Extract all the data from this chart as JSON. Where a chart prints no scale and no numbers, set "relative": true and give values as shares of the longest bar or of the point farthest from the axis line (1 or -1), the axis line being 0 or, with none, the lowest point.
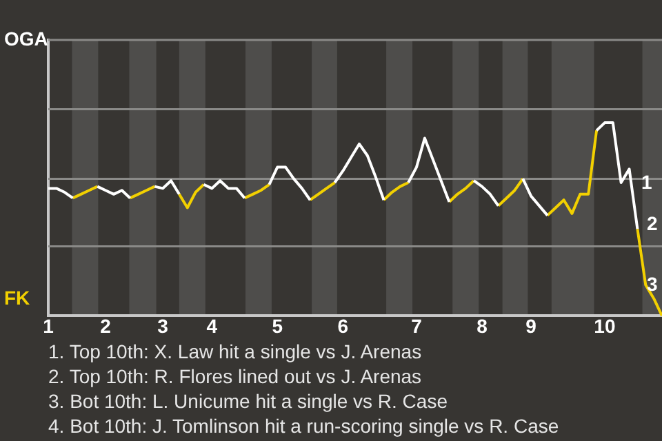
{
  "chart_data": {
    "type": "line",
    "relative": true,
    "marker": "none",
    "line_style": "solid",
    "categories": [
      "1",
      null,
      null,
      null,
      null,
      null,
      null,
      "2",
      null,
      null,
      null,
      null,
      null,
      null,
      "3",
      null,
      null,
      null,
      null,
      null,
      "4",
      null,
      null,
      null,
      null,
      null,
      null,
      null,
      "5",
      null,
      null,
      null,
      null,
      null,
      null,
      null,
      "6",
      null,
      null,
      null,
      null,
      null,
      null,
      null,
      null,
      "7",
      null,
      null,
      null,
      null,
      null,
      null,
      null,
      "8",
      null,
      null,
      null,
      null,
      null,
      "9",
      null,
      null,
      null,
      null,
      null,
      null,
      null,
      null,
      "10",
      null,
      null,
      null,
      null,
      null,
      null,
      null
    ],
    "series": [
      {
        "name": "OGA",
        "color": "#ffffff",
        "values": [
          0.66,
          0.66,
          0.64,
          0.61,
          null,
          null,
          0.67,
          0.65,
          0.63,
          0.65,
          0.61,
          null,
          null,
          0.67,
          0.66,
          0.7,
          0.63,
          null,
          null,
          0.68,
          0.66,
          0.7,
          0.66,
          0.66,
          0.61,
          null,
          null,
          0.68,
          0.77,
          0.77,
          0.71,
          0.66,
          0.6,
          null,
          null,
          0.69,
          0.75,
          0.82,
          0.89,
          0.83,
          0.72,
          0.6,
          null,
          null,
          0.69,
          0.77,
          0.92,
          0.81,
          0.7,
          0.59,
          null,
          null,
          0.7,
          0.67,
          0.63,
          0.57,
          null,
          null,
          0.71,
          0.62,
          0.57,
          0.52,
          null,
          null,
          null,
          null,
          null,
          0.96,
          1,
          1,
          0.69,
          0.76,
          0.45,
          null,
          null,
          null
        ]
      },
      {
        "name": "FK",
        "color": "#f2d000",
        "values": [
          null,
          null,
          null,
          0.61,
          0.63,
          0.65,
          0.67,
          null,
          null,
          null,
          0.61,
          0.63,
          0.65,
          0.67,
          null,
          null,
          0.63,
          0.56,
          0.64,
          0.68,
          null,
          null,
          null,
          null,
          0.61,
          0.63,
          0.65,
          0.68,
          null,
          null,
          null,
          null,
          0.6,
          0.63,
          0.66,
          0.69,
          null,
          null,
          null,
          null,
          null,
          0.6,
          0.64,
          0.67,
          0.69,
          null,
          null,
          null,
          null,
          0.59,
          0.63,
          0.66,
          0.7,
          null,
          null,
          0.57,
          0.61,
          0.65,
          0.71,
          null,
          null,
          0.52,
          0.56,
          0.6,
          0.53,
          0.63,
          0.63,
          0.96,
          null,
          null,
          null,
          null,
          0.45,
          0.16,
          0.09,
          0
        ]
      }
    ],
    "ref_lines": [
      {
        "axis": "y",
        "value": 0.36,
        "color": "#8a8a88"
      },
      {
        "axis": "y",
        "value": 0.71,
        "color": "#8a8a88"
      },
      {
        "axis": "y",
        "value": 1.07,
        "color": "#8a8a88"
      }
    ],
    "annotations": [
      "1",
      "2",
      "3",
      "1. Top 10th: X. Law hit a single vs J. Arenas",
      "2. Top 10th: R. Flores lined out vs J. Arenas",
      "3. Bot 10th: L. Unicume hit a single vs R. Case",
      "4. Bot 10th: J. Tomlinson hit a run-scoring single vs R. Case"
    ]
  }
}
